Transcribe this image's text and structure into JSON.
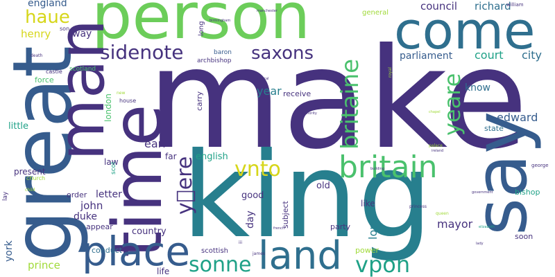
{
  "word_cloud": {
    "words": [
      {
        "text": "make",
        "color": "#46327e"
      },
      {
        "text": "king",
        "color": "#277f8e"
      },
      {
        "text": "person",
        "color": "#6ccd5a"
      },
      {
        "text": "come",
        "color": "#2f6f8e"
      },
      {
        "text": "great",
        "color": "#365c8d"
      },
      {
        "text": "man",
        "color": "#46327e"
      },
      {
        "text": "time",
        "color": "#46327e"
      },
      {
        "text": "say",
        "color": "#365c8d"
      },
      {
        "text": "place",
        "color": "#365c8d"
      },
      {
        "text": "land",
        "color": "#2f6f8e"
      },
      {
        "text": "britain",
        "color": "#4ac16d"
      },
      {
        "text": "sidenote",
        "color": "#46327e"
      },
      {
        "text": "saxons",
        "color": "#46327e"
      },
      {
        "text": "sonne",
        "color": "#1fa187"
      },
      {
        "text": "vpon",
        "color": "#1fa187"
      },
      {
        "text": "vnto",
        "color": "#d6d61a"
      },
      {
        "text": "y\u0000ere",
        "color": "#46327e"
      },
      {
        "text": "britaine",
        "color": "#4ac16d"
      },
      {
        "text": "yeare",
        "color": "#4ac16d"
      },
      {
        "text": "haue",
        "color": "#d6d61a"
      },
      {
        "text": "england",
        "color": "#365c8d"
      },
      {
        "text": "council",
        "color": "#46327e"
      },
      {
        "text": "richard",
        "color": "#2f6f8e"
      },
      {
        "text": "parliament",
        "color": "#365c8d"
      },
      {
        "text": "court",
        "color": "#1fa187"
      },
      {
        "text": "city",
        "color": "#2f6f8e"
      },
      {
        "text": "edward",
        "color": "#365c8d"
      },
      {
        "text": "know",
        "color": "#2f6f8e"
      },
      {
        "text": "year",
        "color": "#277f8e"
      },
      {
        "text": "earl",
        "color": "#46327e"
      },
      {
        "text": "henry",
        "color": "#d6d61a"
      },
      {
        "text": "way",
        "color": "#46327e"
      },
      {
        "text": "english",
        "color": "#1fa187"
      },
      {
        "text": "letter",
        "color": "#46327e"
      },
      {
        "text": "john",
        "color": "#46327e"
      },
      {
        "text": "duke",
        "color": "#46327e"
      },
      {
        "text": "mayor",
        "color": "#46327e"
      },
      {
        "text": "lord",
        "color": "#277f8e"
      },
      {
        "text": "prince",
        "color": "#a0da39"
      },
      {
        "text": "york",
        "color": "#365c8d"
      },
      {
        "text": "country",
        "color": "#46327e"
      },
      {
        "text": "day",
        "color": "#46327e"
      },
      {
        "text": "old",
        "color": "#46327e"
      },
      {
        "text": "good",
        "color": "#46327e"
      },
      {
        "text": "like",
        "color": "#46327e"
      },
      {
        "text": "party",
        "color": "#46327e"
      },
      {
        "text": "power",
        "color": "#a0da39"
      },
      {
        "text": "subject",
        "color": "#46327e"
      },
      {
        "text": "scottish",
        "color": "#46327e"
      },
      {
        "text": "life",
        "color": "#46327e"
      },
      {
        "text": "conduct",
        "color": "#2f6f8e"
      },
      {
        "text": "appear",
        "color": "#46327e"
      },
      {
        "text": "order",
        "color": "#46327e"
      },
      {
        "text": "present",
        "color": "#46327e"
      },
      {
        "text": "little",
        "color": "#1fa187"
      },
      {
        "text": "law",
        "color": "#46327e"
      },
      {
        "text": "far",
        "color": "#46327e"
      },
      {
        "text": "carry",
        "color": "#46327e"
      },
      {
        "text": "receive",
        "color": "#46327e"
      },
      {
        "text": "london",
        "color": "#4ac16d"
      },
      {
        "text": "force",
        "color": "#4ac16d"
      },
      {
        "text": "long",
        "color": "#46327e"
      },
      {
        "text": "general",
        "color": "#a0da39"
      },
      {
        "text": "soon",
        "color": "#46327e"
      },
      {
        "text": "state",
        "color": "#2f6f8e"
      },
      {
        "text": "bishop",
        "color": "#1fa187"
      },
      {
        "text": "scot",
        "color": "#1fa187"
      },
      {
        "text": "baron",
        "color": "#365c8d"
      },
      {
        "text": "archbishop",
        "color": "#46327e"
      },
      {
        "text": "scotland",
        "color": "#4ac16d"
      },
      {
        "text": "church",
        "color": "#a0da39"
      },
      {
        "text": "castle",
        "color": "#46327e"
      },
      {
        "text": "house",
        "color": "#46327e"
      },
      {
        "text": "lay",
        "color": "#46327e"
      },
      {
        "text": "son",
        "color": "#46327e"
      },
      {
        "text": "death",
        "color": "#46327e"
      },
      {
        "text": "george",
        "color": "#46327e"
      },
      {
        "text": "william",
        "color": "#46327e"
      },
      {
        "text": "james",
        "color": "#46327e"
      },
      {
        "text": "queen",
        "color": "#a0da39"
      },
      {
        "text": "princess",
        "color": "#46327e"
      },
      {
        "text": "new",
        "color": "#a0da39"
      },
      {
        "text": "child",
        "color": "#a0da39"
      },
      {
        "text": "iii",
        "color": "#46327e"
      },
      {
        "text": "royal",
        "color": "#a0da39"
      },
      {
        "text": "palace",
        "color": "#a0da39"
      },
      {
        "text": "ireland",
        "color": "#46327e"
      },
      {
        "text": "lady",
        "color": "#46327e"
      },
      {
        "text": "french",
        "color": "#46327e"
      },
      {
        "text": "political",
        "color": "#46327e"
      },
      {
        "text": "authority",
        "color": "#46327e"
      },
      {
        "text": "manchester",
        "color": "#46327e"
      },
      {
        "text": "birmingham",
        "color": "#46327e"
      },
      {
        "text": "government",
        "color": "#46327e"
      },
      {
        "text": "elizabeth",
        "color": "#1fa187"
      },
      {
        "text": "kingdom",
        "color": "#46327e"
      },
      {
        "text": "chapel",
        "color": "#a0da39"
      },
      {
        "text": "building",
        "color": "#46327e"
      }
    ]
  }
}
